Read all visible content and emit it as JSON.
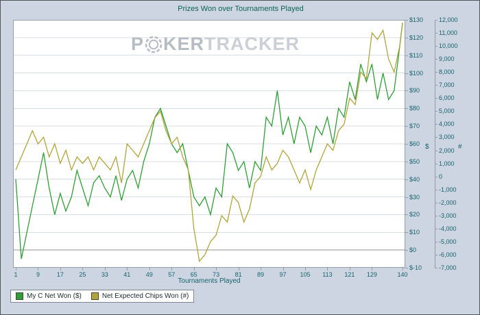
{
  "colors": {
    "background": "#ccd5e1",
    "plot_border": "#969da6",
    "grid": "#d9dee4",
    "zero_line": "#8c9196",
    "label": "#17646e",
    "title": "#0d6257",
    "legend_border": "#7e858d",
    "watermark_dark": "#b6bcc4",
    "watermark_light": "#cbd0d6"
  },
  "watermark": {
    "part1": "P",
    "part2": "KER",
    "part3": "TRACKER"
  },
  "chart_data": {
    "type": "line",
    "title": "Prizes Won over Tournaments Played",
    "xlabel": "Tournaments Played",
    "grid": "horizontal",
    "legend_position": "bottom-left",
    "x_range": [
      1,
      140
    ],
    "x_ticks": [
      1,
      9,
      17,
      25,
      33,
      41,
      49,
      57,
      65,
      73,
      81,
      89,
      97,
      105,
      113,
      121,
      129,
      140
    ],
    "left_axis": {
      "label": "$",
      "min": -10,
      "max": 130,
      "step": 10,
      "tick_labels": [
        "$130",
        "$120",
        "$110",
        "$100",
        "$90",
        "$80",
        "$70",
        "$60",
        "$50",
        "$40",
        "$30",
        "$20",
        "$10",
        "$0",
        "$-10"
      ]
    },
    "right_axis": {
      "label": "#",
      "min": -7000,
      "max": 12000,
      "step": 1000,
      "tick_labels": [
        "12,000",
        "11,000",
        "10,000",
        "9,000",
        "8,000",
        "7,000",
        "6,000",
        "5,000",
        "4,000",
        "3,000",
        "2,000",
        "1,000",
        "0",
        "-1,000",
        "-2,000",
        "-3,000",
        "-4,000",
        "-5,000",
        "-6,000",
        "-7,000"
      ]
    },
    "x": [
      1,
      3,
      5,
      7,
      9,
      11,
      13,
      15,
      17,
      19,
      21,
      23,
      25,
      27,
      29,
      31,
      33,
      35,
      37,
      39,
      41,
      43,
      45,
      47,
      49,
      51,
      53,
      55,
      57,
      59,
      61,
      63,
      65,
      67,
      69,
      71,
      73,
      75,
      77,
      79,
      81,
      83,
      85,
      87,
      89,
      91,
      93,
      95,
      97,
      99,
      101,
      103,
      105,
      107,
      109,
      111,
      113,
      115,
      117,
      119,
      121,
      123,
      125,
      127,
      129,
      131,
      133,
      135,
      137,
      139,
      140
    ],
    "series": [
      {
        "name": "My C Net Won ($)",
        "axis": "left",
        "color": "#2e9e35",
        "values": [
          40,
          -5,
          10,
          25,
          40,
          55,
          35,
          20,
          32,
          22,
          30,
          45,
          35,
          25,
          38,
          42,
          35,
          30,
          42,
          28,
          40,
          45,
          35,
          50,
          60,
          75,
          80,
          70,
          60,
          55,
          60,
          45,
          30,
          25,
          30,
          20,
          35,
          30,
          60,
          55,
          45,
          50,
          35,
          50,
          45,
          75,
          70,
          90,
          65,
          75,
          60,
          75,
          70,
          55,
          70,
          65,
          75,
          60,
          80,
          75,
          95,
          85,
          105,
          95,
          105,
          85,
          100,
          85,
          90,
          115,
          128
        ]
      },
      {
        "name": "Net Expected Chips Won (#)",
        "axis": "right",
        "color": "#b1a43a",
        "values": [
          500,
          1500,
          2500,
          3500,
          2500,
          3000,
          1500,
          2500,
          1000,
          2000,
          500,
          1500,
          1000,
          1500,
          500,
          1500,
          1000,
          500,
          1500,
          -500,
          2500,
          2000,
          1500,
          2500,
          3500,
          4500,
          5000,
          3500,
          2500,
          3000,
          1500,
          500,
          -4000,
          -6500,
          -6000,
          -5000,
          -4500,
          -3000,
          -3500,
          -1500,
          -2000,
          -3500,
          -2500,
          -500,
          0,
          1500,
          500,
          1000,
          2000,
          1500,
          500,
          -500,
          500,
          -1000,
          500,
          1500,
          2500,
          2000,
          3500,
          4000,
          6000,
          5500,
          8000,
          7500,
          11000,
          10500,
          11200,
          9000,
          8000,
          10000,
          11800
        ]
      }
    ]
  }
}
